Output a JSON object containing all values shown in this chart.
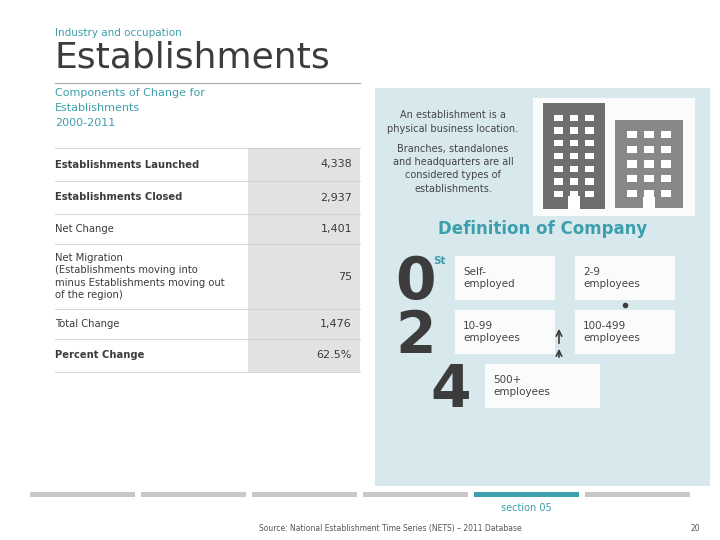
{
  "title_small": "Industry and occupation",
  "title_large": "Establishments",
  "subtitle": "Components of Change for\nEstablishments\n2000-2011",
  "table_rows": [
    {
      "label": "Establishments Launched",
      "value": "4,338",
      "bold": true
    },
    {
      "label": "Establishments Closed",
      "value": "2,937",
      "bold": true
    },
    {
      "label": "Net Change",
      "value": "1,401",
      "bold": false
    },
    {
      "label": "Net Migration\n(Establishments moving into\nminus Establishments moving out\nof the region)",
      "value": "75",
      "bold": false
    },
    {
      "label": "Total Change",
      "value": "1,476",
      "bold": false
    },
    {
      "label": "Percent Change",
      "value": "62.5%",
      "bold": true
    }
  ],
  "right_panel_bg": "#d8e9ee",
  "right_text1": "An establishment is a\nphysical business location.",
  "right_text2": "Branches, standalones\nand headquarters are all\nconsidered types of\nestablishments.",
  "def_title": "Definition of Company",
  "section_label": "section 05",
  "source_text": "Source: National Establishment Time Series (NETS) – 2011 Database",
  "page_num": "20",
  "teal_color": "#3d9fac",
  "dark_gray": "#3c3c3c",
  "medium_gray": "#888888",
  "light_gray": "#e8e8e8",
  "table_value_bg": "#e0e0e0",
  "section_bar_color": "#3d9fac",
  "bar_inactive_color": "#c8c8c8"
}
